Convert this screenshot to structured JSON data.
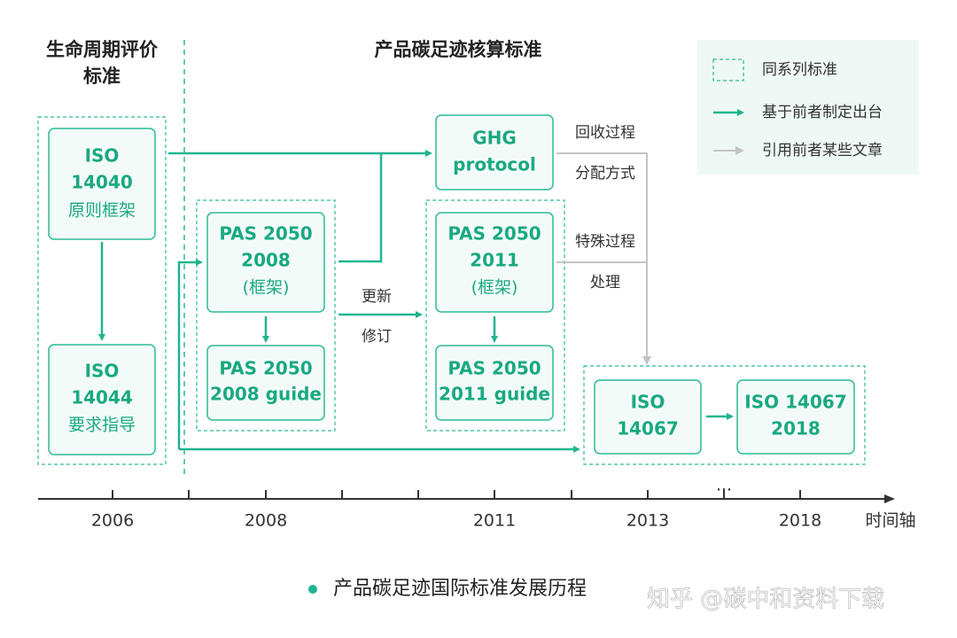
{
  "headers": {
    "lca": [
      "生命周期评价",
      "标准"
    ],
    "carbon": "产品碳足迹核算标准"
  },
  "legend": [
    "同系列标准",
    "基于前者制定出台",
    "引用前者某些文章"
  ],
  "boxes": {
    "iso14040": [
      "ISO",
      "14040",
      "原则框架"
    ],
    "iso14044": [
      "ISO",
      "14044",
      "要求指导"
    ],
    "pas2008": [
      "PAS 2050",
      "2008",
      "(框架)"
    ],
    "pas2008guide": [
      "PAS 2050",
      "2008 guide"
    ],
    "ghg": [
      "GHG",
      "protocol"
    ],
    "pas2011": [
      "PAS 2050",
      "2011",
      "(框架)"
    ],
    "pas2011guide": [
      "PAS 2050",
      "2011 guide"
    ],
    "iso14067": [
      "ISO",
      "14067"
    ],
    "iso14067_2018": [
      "ISO 14067",
      "2018"
    ]
  },
  "annotations": {
    "recycle": [
      "回收过程",
      "分配方式"
    ],
    "special": [
      "特殊过程",
      "处理"
    ],
    "update": [
      "更新",
      "修订"
    ]
  },
  "timeline": {
    "years": [
      "2006",
      "2008",
      "2011",
      "2013",
      "2018"
    ],
    "ellipsis": "...",
    "axis_label": "时间轴"
  },
  "caption": "产品碳足迹国际标准发展历程",
  "watermark": "知乎 @碳中和资料下载"
}
